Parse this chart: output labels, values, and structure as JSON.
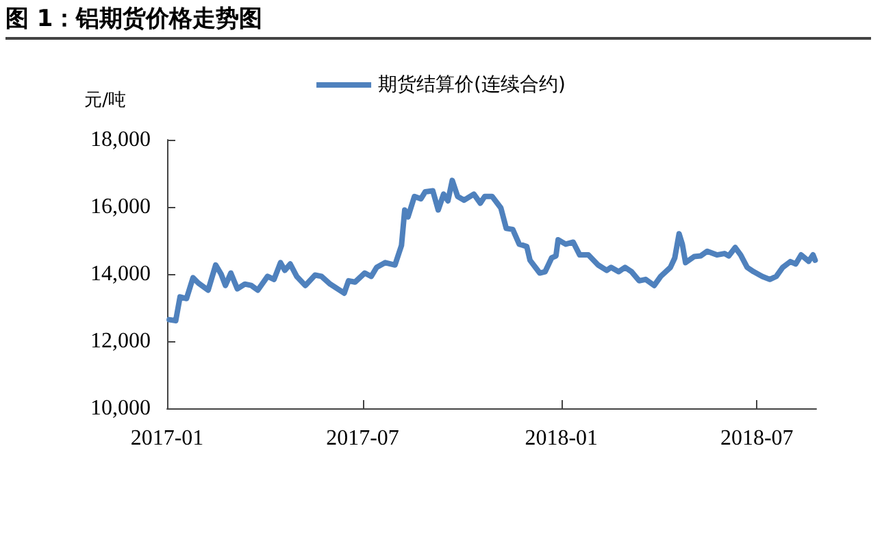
{
  "chart_data": {
    "type": "line",
    "title": "图 1：铝期货价格走势图",
    "ylabel": "元/吨",
    "x": [
      "2017-01-03",
      "2017-01-09",
      "2017-01-13",
      "2017-01-19",
      "2017-01-25",
      "2017-01-30",
      "2017-02-08",
      "2017-02-15",
      "2017-02-20",
      "2017-02-24",
      "2017-03-01",
      "2017-03-07",
      "2017-03-14",
      "2017-03-20",
      "2017-03-26",
      "2017-04-04",
      "2017-04-10",
      "2017-04-16",
      "2017-04-20",
      "2017-04-25",
      "2017-05-01",
      "2017-05-09",
      "2017-05-18",
      "2017-05-24",
      "2017-06-01",
      "2017-06-14",
      "2017-06-18",
      "2017-06-24",
      "2017-07-03",
      "2017-07-09",
      "2017-07-14",
      "2017-07-22",
      "2017-07-31",
      "2017-08-06",
      "2017-08-09",
      "2017-08-12",
      "2017-08-18",
      "2017-08-24",
      "2017-08-28",
      "2017-09-04",
      "2017-09-09",
      "2017-09-14",
      "2017-09-18",
      "2017-09-22",
      "2017-09-27",
      "2017-10-03",
      "2017-10-12",
      "2017-10-18",
      "2017-10-22",
      "2017-10-29",
      "2017-11-06",
      "2017-11-11",
      "2017-11-17",
      "2017-11-23",
      "2017-11-30",
      "2017-12-03",
      "2017-12-08",
      "2017-12-12",
      "2017-12-17",
      "2017-12-23",
      "2017-12-27",
      "2017-12-29",
      "2018-01-05",
      "2018-01-12",
      "2018-01-18",
      "2018-01-26",
      "2018-02-04",
      "2018-02-12",
      "2018-02-16",
      "2018-02-23",
      "2018-03-01",
      "2018-03-07",
      "2018-03-14",
      "2018-03-20",
      "2018-03-28",
      "2018-04-03",
      "2018-04-12",
      "2018-04-16",
      "2018-04-20",
      "2018-04-23",
      "2018-04-26",
      "2018-05-04",
      "2018-05-10",
      "2018-05-16",
      "2018-05-25",
      "2018-06-01",
      "2018-06-05",
      "2018-06-11",
      "2018-06-16",
      "2018-06-22",
      "2018-06-28",
      "2018-07-06",
      "2018-07-13",
      "2018-07-19",
      "2018-07-25",
      "2018-08-01",
      "2018-08-06",
      "2018-08-11",
      "2018-08-18",
      "2018-08-22",
      "2018-08-24"
    ],
    "series": [
      {
        "name": "期货结算价(连续合约)",
        "color": "#4f81bd",
        "values": [
          12640,
          12610,
          13320,
          13270,
          13890,
          13730,
          13520,
          14270,
          14000,
          13660,
          14030,
          13560,
          13700,
          13660,
          13520,
          13930,
          13840,
          14340,
          14110,
          14300,
          13930,
          13660,
          13970,
          13930,
          13700,
          13430,
          13800,
          13760,
          14030,
          13930,
          14200,
          14340,
          14270,
          14850,
          15910,
          15700,
          16310,
          16240,
          16450,
          16480,
          15910,
          16380,
          16180,
          16790,
          16310,
          16200,
          16380,
          16110,
          16310,
          16310,
          15970,
          15360,
          15330,
          14890,
          14820,
          14410,
          14200,
          14030,
          14070,
          14480,
          14540,
          15020,
          14890,
          14950,
          14570,
          14570,
          14270,
          14110,
          14200,
          14070,
          14200,
          14070,
          13800,
          13840,
          13660,
          13930,
          14200,
          14480,
          15200,
          14890,
          14340,
          14520,
          14540,
          14680,
          14570,
          14610,
          14540,
          14790,
          14570,
          14200,
          14070,
          13930,
          13840,
          13930,
          14200,
          14370,
          14300,
          14570,
          14380,
          14570,
          14410
        ]
      }
    ],
    "xlim": [
      "2017-01-01",
      "2018-08-25"
    ],
    "xticks": [
      "2017-01",
      "2017-07",
      "2018-01",
      "2018-07"
    ],
    "ylim": [
      10000,
      18000
    ],
    "yticks": [
      {
        "value": 10000,
        "label": "10,000"
      },
      {
        "value": 12000,
        "label": "12,000"
      },
      {
        "value": 14000,
        "label": "14,000"
      },
      {
        "value": 16000,
        "label": "16,000"
      },
      {
        "value": 18000,
        "label": "18,000"
      }
    ],
    "grid": false,
    "legend": "top",
    "marker": "none",
    "line_style": "solid"
  }
}
